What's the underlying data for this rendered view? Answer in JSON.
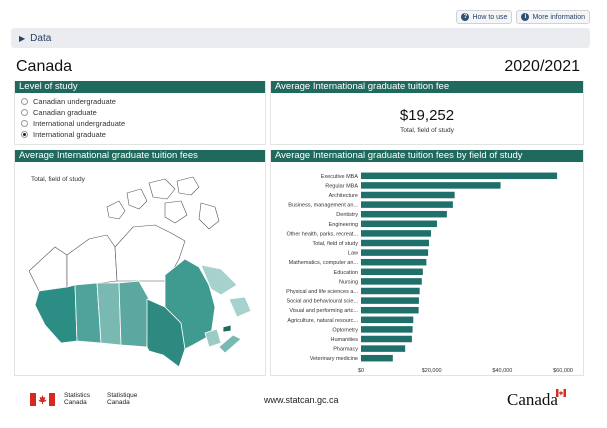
{
  "top_links": {
    "how_to_use": "How to use",
    "more_information": "More information"
  },
  "data_toggle": "Data",
  "geography": "Canada",
  "year": "2020/2021",
  "level_panel": {
    "title": "Level of study",
    "options": [
      {
        "label": "Canadian undergraduate",
        "selected": false
      },
      {
        "label": "Canadian graduate",
        "selected": false
      },
      {
        "label": "International undergraduate",
        "selected": false
      },
      {
        "label": "International graduate",
        "selected": true
      }
    ]
  },
  "average_panel": {
    "title": "Average International graduate tuition fee",
    "value": "$19,252",
    "subtitle": "Total, field of study"
  },
  "map_panel": {
    "title": "Average International graduate tuition fees",
    "subtitle": "Total, field of study"
  },
  "colors": {
    "header": "#1f6a5c",
    "bar": "#1f6f6a"
  },
  "chart_data": {
    "type": "bar",
    "orientation": "horizontal",
    "title": "Average International graduate tuition fees by field of study",
    "categories": [
      "Executive MBA",
      "Regular MBA",
      "Architecture",
      "Business, management an...",
      "Dentistry",
      "Engineering",
      "Other health, parks, recreat...",
      "Total, field of study",
      "Law",
      "Mathematics, computer an...",
      "Education",
      "Nursing",
      "Physical and life sciences a...",
      "Social and behavioural scie...",
      "Visual and performing artc...",
      "Agriculture, natural resourc...",
      "Optometry",
      "Humanities",
      "Pharmacy",
      "Veterinary medicine"
    ],
    "values": [
      55500,
      39500,
      26500,
      26000,
      24300,
      21500,
      19800,
      19252,
      19000,
      18500,
      17500,
      17200,
      16600,
      16400,
      16300,
      14800,
      14600,
      14400,
      12500,
      9000
    ],
    "xlim": [
      0,
      60000
    ],
    "xticks": [
      "$0",
      "$20,000",
      "$40,000",
      "$60,000"
    ],
    "tick_values": [
      0,
      20000,
      40000,
      60000
    ]
  },
  "footer": {
    "statcan_en": [
      "Statistics",
      "Canada"
    ],
    "statcan_fr": [
      "Statistique",
      "Canada"
    ],
    "website": "www.statcan.gc.ca",
    "wordmark": "Canada"
  }
}
